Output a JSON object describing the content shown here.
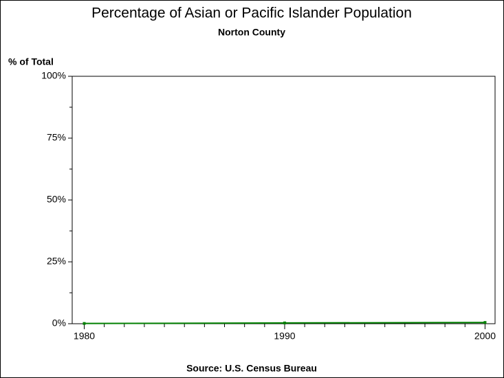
{
  "chart_data": {
    "type": "line",
    "title": "Percentage of Asian or Pacific Islander Population",
    "subtitle": "Norton County",
    "y_label": "% of Total",
    "source": "Source: U.S. Census Bureau",
    "x": [
      1980,
      1990,
      2000
    ],
    "series": [
      {
        "name": "Norton County",
        "color": "#008000",
        "values": [
          0.1,
          0.3,
          0.5
        ]
      }
    ],
    "xlim": [
      1979.4,
      2000.5
    ],
    "xticks": [
      1980,
      1990,
      2000
    ],
    "xminor_ticks": [
      1981,
      1982,
      1983,
      1984,
      1985,
      1986,
      1987,
      1988,
      1989,
      1991,
      1992,
      1993,
      1994,
      1995,
      1996,
      1997,
      1998,
      1999
    ],
    "ylim": [
      0,
      100
    ],
    "yticks": [
      {
        "value": 0,
        "label": "0%"
      },
      {
        "value": 25,
        "label": "25%"
      },
      {
        "value": 50,
        "label": "50%"
      },
      {
        "value": 75,
        "label": "75%"
      },
      {
        "value": 100,
        "label": "100%"
      }
    ],
    "yminor_ticks": [
      12.5,
      37.5,
      62.5,
      87.5
    ]
  }
}
